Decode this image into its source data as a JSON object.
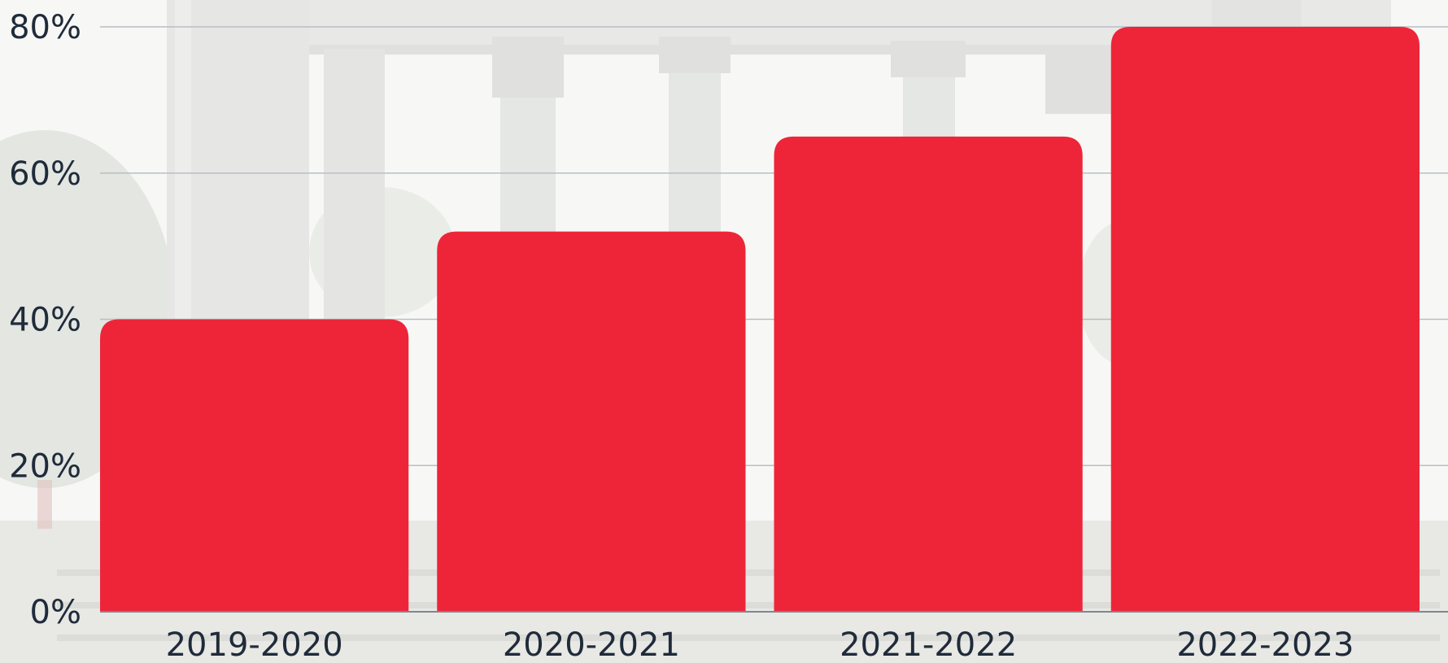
{
  "chart_data": {
    "type": "bar",
    "categories": [
      "2019-2020",
      "2020-2021",
      "2021-2022",
      "2022-2023"
    ],
    "values": [
      40,
      52,
      65,
      80
    ],
    "ylim": [
      0,
      80
    ],
    "yticks": [
      0,
      20,
      40,
      60,
      80
    ],
    "ytick_labels": [
      "0%",
      "20%",
      "40%",
      "60%",
      "80%"
    ],
    "title": "",
    "xlabel": "",
    "ylabel": "",
    "grid": true,
    "legend": "none"
  },
  "colors": {
    "bar": "#ee2539",
    "text": "#1f2b3a",
    "grid": "#b9bec3",
    "background_photo": "faded classical stone colonnade ruins with trees"
  },
  "background_image": {
    "subject": "ancient-ruins-colonnade",
    "opacity": 0.35
  }
}
